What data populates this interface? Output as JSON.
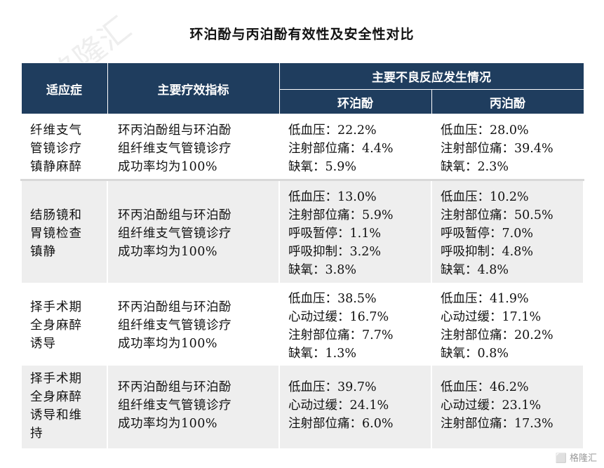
{
  "title": "环泊酚与丙泊酚有效性及安全性对比",
  "header": {
    "col_indication": "适应症",
    "col_efficacy": "主要疗效指标",
    "col_adverse": "主要不良反应发生情况",
    "col_ciprofol": "环泊酚",
    "col_propofol": "丙泊酚"
  },
  "rows": [
    {
      "indication": [
        "纤维支气",
        "管镜诊疗",
        "镇静麻醉"
      ],
      "efficacy": [
        "环丙泊酚组与环泊酚",
        "组纤维支气管镜诊疗",
        "成功率均为100%"
      ],
      "ciprofol": [
        "低血压：22.2%",
        "注射部位痛：4.4%",
        "缺氧：5.9%"
      ],
      "propofol": [
        "低血压：28.0%",
        "注射部位痛：39.4%",
        "缺氧：2.3%"
      ]
    },
    {
      "indication": [
        "结肠镜和",
        "胃镜检查",
        "镇静"
      ],
      "efficacy": [
        "环丙泊酚组与环泊酚",
        "组纤维支气管镜诊疗",
        "成功率均为100%"
      ],
      "ciprofol": [
        "低血压：13.0%",
        "注射部位痛：5.9%",
        "呼吸暂停：1.1%",
        "呼吸抑制：3.2%",
        "缺氧：3.8%"
      ],
      "propofol": [
        "低血压：10.2%",
        "注射部位痛：50.5%",
        "呼吸暂停：7.0%",
        "呼吸抑制：4.8%",
        "缺氧：4.8%"
      ]
    },
    {
      "indication": [
        "择手术期",
        "全身麻醉",
        "诱导"
      ],
      "efficacy": [
        "环丙泊酚组与环泊酚",
        "组纤维支气管镜诊疗",
        "成功率均为100%"
      ],
      "ciprofol": [
        "低血压：38.5%",
        "心动过缓：16.7%",
        "注射部位痛：7.7%",
        "缺氧：1.3%"
      ],
      "propofol": [
        "低血压：41.9%",
        "心动过缓：17.1%",
        "注射部位痛：20.2%",
        "缺氧：0.8%"
      ]
    },
    {
      "indication": [
        "择手术期",
        "全身麻醉",
        "诱导和维",
        "持"
      ],
      "efficacy": [
        "环丙泊酚组与环泊酚",
        "组纤维支气管镜诊疗",
        "成功率均为100%"
      ],
      "ciprofol": [
        "低血压：39.7%",
        "心动过缓：24.1%",
        "注射部位痛：6.0%"
      ],
      "propofol": [
        "低血压：46.2%",
        "心动过缓：23.1%",
        "注射部位痛：17.3%"
      ]
    }
  ],
  "watermark": "格隆汇"
}
